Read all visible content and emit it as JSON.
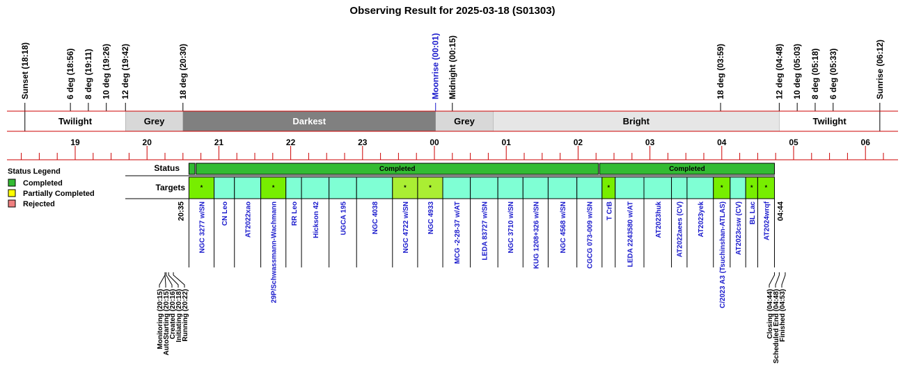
{
  "chart_data": {
    "type": "timeline",
    "title": "Observing Result for 2025-03-18 (S01303)",
    "sun_moon_events": [
      {
        "label": "Sunset (18:18)",
        "time": "18:18",
        "color": "#000000"
      },
      {
        "label": "6 deg (18:56)",
        "time": "18:56",
        "color": "#000000"
      },
      {
        "label": "8 deg (19:11)",
        "time": "19:11",
        "color": "#000000"
      },
      {
        "label": "10 deg (19:26)",
        "time": "19:26",
        "color": "#000000"
      },
      {
        "label": "12 deg (19:42)",
        "time": "19:42",
        "color": "#000000"
      },
      {
        "label": "18 deg (20:30)",
        "time": "20:30",
        "color": "#000000"
      },
      {
        "label": "Moonrise (00:01)",
        "time": "00:01",
        "color": "#1a1acc"
      },
      {
        "label": "Midnight (00:15)",
        "time": "00:15",
        "color": "#000000"
      },
      {
        "label": "18 deg (03:59)",
        "time": "03:59",
        "color": "#000000"
      },
      {
        "label": "12 deg (04:48)",
        "time": "04:48",
        "color": "#000000"
      },
      {
        "label": "10 deg (05:03)",
        "time": "05:03",
        "color": "#000000"
      },
      {
        "label": "8 deg (05:18)",
        "time": "05:18",
        "color": "#000000"
      },
      {
        "label": "6 deg (05:33)",
        "time": "05:33",
        "color": "#000000"
      },
      {
        "label": "Sunrise (06:12)",
        "time": "06:12",
        "color": "#000000"
      }
    ],
    "phases": [
      {
        "label": "Twilight",
        "start": "18:18",
        "end": "19:42",
        "fill": "#ffffff",
        "text": "#000000"
      },
      {
        "label": "Grey",
        "start": "19:42",
        "end": "20:30",
        "fill": "#d8d8d8",
        "text": "#000000"
      },
      {
        "label": "Darkest",
        "start": "20:30",
        "end": "00:01",
        "fill": "#808080",
        "text": "#ffffff"
      },
      {
        "label": "Grey",
        "start": "00:01",
        "end": "00:49",
        "fill": "#d8d8d8",
        "text": "#000000"
      },
      {
        "label": "Bright",
        "start": "00:49",
        "end": "04:48",
        "fill": "#e6e6e6",
        "text": "#000000"
      },
      {
        "label": "Twilight",
        "start": "04:48",
        "end": "06:12",
        "fill": "#ffffff",
        "text": "#000000"
      }
    ],
    "hour_labels": [
      "19",
      "20",
      "21",
      "22",
      "23",
      "00",
      "01",
      "02",
      "03",
      "04",
      "05",
      "06"
    ],
    "axis_range": [
      "18:00",
      "06:30"
    ],
    "row_labels": {
      "status": "Status",
      "targets": "Targets"
    },
    "status_bars": [
      {
        "label": "",
        "start": "20:35",
        "end": "20:40",
        "color": "#33bb33"
      },
      {
        "label": "Completed",
        "start": "20:41",
        "end": "02:17",
        "color": "#33bb33"
      },
      {
        "label": "Completed",
        "start": "02:18",
        "end": "04:44",
        "color": "#33bb33"
      }
    ],
    "targets": [
      {
        "name": "NGC 3277 w/SN",
        "start": "20:35",
        "end": "20:56",
        "color": "#77ee00",
        "mark": "*"
      },
      {
        "name": "CN Leo",
        "start": "20:56",
        "end": "21:13",
        "color": "#7fffd4",
        "mark": ""
      },
      {
        "name": "AT2022xao",
        "start": "21:13",
        "end": "21:35",
        "color": "#7fffd4",
        "mark": ""
      },
      {
        "name": "29P/Schwassmann-Wachmann",
        "start": "21:35",
        "end": "21:56",
        "color": "#77ee00",
        "mark": "*"
      },
      {
        "name": "RR Leo",
        "start": "21:56",
        "end": "22:09",
        "color": "#7fffd4",
        "mark": ""
      },
      {
        "name": "Hickson 42",
        "start": "22:09",
        "end": "22:32",
        "color": "#7fffd4",
        "mark": ""
      },
      {
        "name": "UGCA 195",
        "start": "22:32",
        "end": "22:55",
        "color": "#7fffd4",
        "mark": ""
      },
      {
        "name": "NGC 4038",
        "start": "22:55",
        "end": "23:25",
        "color": "#7fffd4",
        "mark": ""
      },
      {
        "name": "NGC 4722 w/SN",
        "start": "23:25",
        "end": "23:46",
        "color": "#aaee33",
        "mark": "*"
      },
      {
        "name": "NGC 4933",
        "start": "23:46",
        "end": "00:07",
        "color": "#aaee33",
        "mark": "*"
      },
      {
        "name": "MCG -2-28-37 w/AT",
        "start": "00:07",
        "end": "00:30",
        "color": "#7fffd4",
        "mark": ""
      },
      {
        "name": "LEDA 83727 w/SN",
        "start": "00:30",
        "end": "00:53",
        "color": "#7fffd4",
        "mark": ""
      },
      {
        "name": "NGC 3710 w/SN",
        "start": "00:53",
        "end": "01:14",
        "color": "#7fffd4",
        "mark": ""
      },
      {
        "name": "KUG 1208+326 w/SN",
        "start": "01:14",
        "end": "01:35",
        "color": "#7fffd4",
        "mark": ""
      },
      {
        "name": "NGC 4568 w/SN",
        "start": "01:35",
        "end": "01:59",
        "color": "#7fffd4",
        "mark": ""
      },
      {
        "name": "CGCG 073-009 w/SN",
        "start": "01:59",
        "end": "02:20",
        "color": "#7fffd4",
        "mark": ""
      },
      {
        "name": "T CrB",
        "start": "02:20",
        "end": "02:31",
        "color": "#77ee00",
        "mark": "*"
      },
      {
        "name": "LEDA 2243580 w/AT",
        "start": "02:31",
        "end": "02:55",
        "color": "#7fffd4",
        "mark": ""
      },
      {
        "name": "AT2023huk",
        "start": "02:55",
        "end": "03:18",
        "color": "#7fffd4",
        "mark": ""
      },
      {
        "name": "AT2022aees (CV)",
        "start": "03:18",
        "end": "03:31",
        "color": "#7fffd4",
        "mark": ""
      },
      {
        "name": "AT2023yek",
        "start": "03:31",
        "end": "03:53",
        "color": "#7fffd4",
        "mark": ""
      },
      {
        "name": "C/2023 A3 (Tsuchinshan-ATLAS)",
        "start": "03:53",
        "end": "04:07",
        "color": "#77ee00",
        "mark": "*"
      },
      {
        "name": "AT2023csw (CV)",
        "start": "04:07",
        "end": "04:20",
        "color": "#7fffd4",
        "mark": ""
      },
      {
        "name": "BL Lac",
        "start": "04:20",
        "end": "04:30",
        "color": "#77ee00",
        "mark": "*"
      },
      {
        "name": "AT2024wrqf",
        "start": "04:30",
        "end": "04:44",
        "color": "#77ee00",
        "mark": "*"
      }
    ],
    "session_start_label": "20:35",
    "session_end_label": "04:44",
    "session_events": [
      {
        "label": "Monitoring (20:15)",
        "time": "20:15"
      },
      {
        "label": "AutoStarting (20:15)",
        "time": "20:15"
      },
      {
        "label": "Created (20:16)",
        "time": "20:16"
      },
      {
        "label": "Initiating (20:18)",
        "time": "20:18"
      },
      {
        "label": "Running (20:22)",
        "time": "20:22"
      },
      {
        "label": "Closing (04:44)",
        "time": "04:44"
      },
      {
        "label": "Scheduled End (04:48)",
        "time": "04:48"
      },
      {
        "label": "Finished (04:53)",
        "time": "04:53"
      }
    ],
    "legend": {
      "title": "Status Legend",
      "placement": "left",
      "items": [
        {
          "label": "Completed",
          "color": "#33bb33"
        },
        {
          "label": "Partially Completed",
          "color": "#ffff00"
        },
        {
          "label": "Rejected",
          "color": "#f08080"
        }
      ]
    }
  }
}
